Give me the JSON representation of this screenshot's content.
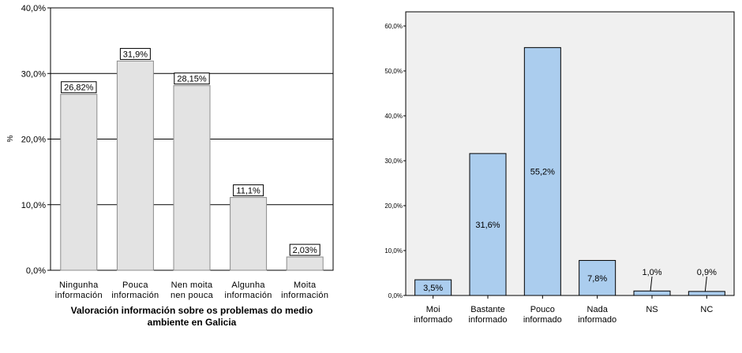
{
  "chart_data": [
    {
      "type": "bar",
      "title": "",
      "xlabel": "Valoración información sobre os problemas do medio ambiente en Galicia",
      "xlabel_lines": [
        "Valoración información sobre os problemas do medio",
        "ambiente en Galicia"
      ],
      "ylabel": "%",
      "ylim": [
        0,
        40
      ],
      "yticks": [
        "0,0%",
        "10,0%",
        "20,0%",
        "30,0%",
        "40,0%"
      ],
      "categories": [
        [
          "Ningunha",
          "información"
        ],
        [
          "Pouca",
          "información"
        ],
        [
          "Nen moita",
          "nen pouca"
        ],
        [
          "Algunha",
          "información"
        ],
        [
          "Moita",
          "información"
        ]
      ],
      "values": [
        26.82,
        31.9,
        28.15,
        11.1,
        2.03
      ],
      "data_labels": [
        "26,82%",
        "31,9%",
        "28,15%",
        "11,1%",
        "2,03%"
      ],
      "grid": true,
      "colors": {
        "bar": "#e3e3e3",
        "bar_stroke": "#8c8c8c",
        "grid": "#000000"
      }
    },
    {
      "type": "bar",
      "title": "",
      "xlabel": "",
      "ylabel": "",
      "ylim": [
        0,
        60
      ],
      "yticks": [
        "0,0%",
        "10,0%",
        "20,0%",
        "30,0%",
        "40,0%",
        "50,0%",
        "60,0%"
      ],
      "categories": [
        [
          "Moi",
          "informado"
        ],
        [
          "Bastante",
          "informado"
        ],
        [
          "Pouco",
          "informado"
        ],
        [
          "Nada",
          "informado"
        ],
        [
          "NS"
        ],
        [
          "NC"
        ]
      ],
      "values": [
        3.5,
        31.6,
        55.2,
        7.8,
        1.0,
        0.9
      ],
      "data_labels": [
        "3,5%",
        "31,6%",
        "55,2%",
        "7,8%",
        "1,0%",
        "0,9%"
      ],
      "grid": false,
      "colors": {
        "bar": "#abcdee",
        "bar_stroke": "#000000",
        "plot_bg": "#f0f0f0"
      }
    }
  ]
}
